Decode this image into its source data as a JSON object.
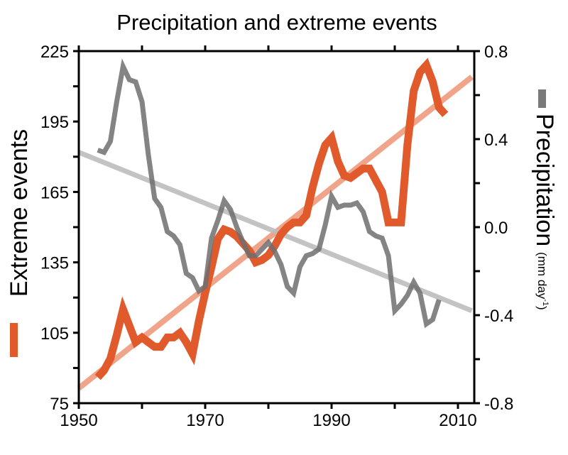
{
  "chart_data": {
    "type": "line",
    "title": "Precipitation and extreme events",
    "xlabel": "",
    "ylabel_left": "Extreme events",
    "ylabel_right": "Precipitation",
    "ylabel_right_unit": "(mm day",
    "ylabel_right_unit_sup": "-1",
    "ylabel_right_unit_close": ")",
    "xlim": [
      1950,
      2013
    ],
    "ylim_left": [
      75,
      225
    ],
    "ylim_right": [
      -0.8,
      0.8
    ],
    "x_ticks": [
      "1950",
      "1970",
      "1990",
      "2010"
    ],
    "y_left_ticks": [
      "75",
      "105",
      "135",
      "165",
      "195",
      "225"
    ],
    "y_right_ticks": [
      "-0.8",
      "-0.4",
      "0.0",
      "0.4",
      "0.8"
    ],
    "grid": false,
    "colors": {
      "extreme": "#e05a2b",
      "extreme_trend": "#f0a58a",
      "precip": "#6e6e6e",
      "precip_trend": "#bdbdbd"
    },
    "series": [
      {
        "name": "Extreme events",
        "axis": "left",
        "x": [
          1953,
          1954,
          1955,
          1956,
          1957,
          1958,
          1959,
          1960,
          1961,
          1962,
          1963,
          1964,
          1965,
          1966,
          1967,
          1968,
          1969,
          1970,
          1971,
          1972,
          1973,
          1974,
          1975,
          1976,
          1977,
          1978,
          1979,
          1980,
          1981,
          1982,
          1983,
          1984,
          1985,
          1986,
          1987,
          1988,
          1989,
          1990,
          1991,
          1992,
          1993,
          1994,
          1995,
          1996,
          1997,
          1998,
          1999,
          2000,
          2001,
          2002,
          2003,
          2004,
          2005,
          2006,
          2007,
          2008
        ],
        "values": [
          86,
          89,
          94,
          104,
          115,
          108,
          101,
          103,
          101,
          99,
          99,
          103,
          103,
          105,
          101,
          96,
          110,
          122,
          133,
          145,
          149,
          148,
          146,
          143,
          140,
          135,
          136,
          138,
          142,
          147,
          150,
          152,
          152,
          155,
          167,
          177,
          185,
          188,
          178,
          172,
          171,
          173,
          175,
          175,
          170,
          165,
          152,
          152,
          152,
          185,
          208,
          216,
          219,
          212,
          201,
          198
        ],
        "trend": [
          [
            1950,
            81.4
          ],
          [
            2012.2,
            214
          ]
        ]
      },
      {
        "name": "Precipitation",
        "axis": "right",
        "x": [
          1953,
          1954,
          1955,
          1956,
          1957,
          1958,
          1959,
          1960,
          1961,
          1962,
          1963,
          1964,
          1965,
          1966,
          1967,
          1968,
          1969,
          1970,
          1971,
          1972,
          1973,
          1974,
          1975,
          1976,
          1977,
          1978,
          1979,
          1980,
          1981,
          1982,
          1983,
          1984,
          1985,
          1986,
          1987,
          1988,
          1989,
          1990,
          1991,
          1992,
          1993,
          1994,
          1995,
          1996,
          1997,
          1998,
          1999,
          2000,
          2001,
          2002,
          2003,
          2004,
          2005,
          2006,
          2007
        ],
        "values": [
          0.35,
          0.34,
          0.39,
          0.57,
          0.73,
          0.67,
          0.66,
          0.57,
          0.33,
          0.13,
          0.09,
          -0.02,
          -0.04,
          -0.08,
          -0.21,
          -0.23,
          -0.29,
          -0.27,
          -0.05,
          0.03,
          0.12,
          0.08,
          0.0,
          -0.07,
          -0.13,
          -0.13,
          -0.1,
          -0.07,
          -0.11,
          -0.17,
          -0.27,
          -0.3,
          -0.18,
          -0.13,
          -0.12,
          -0.1,
          0.01,
          0.14,
          0.09,
          0.1,
          0.1,
          0.11,
          0.07,
          -0.02,
          -0.04,
          -0.05,
          -0.13,
          -0.38,
          -0.35,
          -0.31,
          -0.25,
          -0.3,
          -0.44,
          -0.42,
          -0.33
        ],
        "trend": [
          [
            1950,
            0.34
          ],
          [
            2012.2,
            -0.38
          ]
        ]
      }
    ]
  }
}
